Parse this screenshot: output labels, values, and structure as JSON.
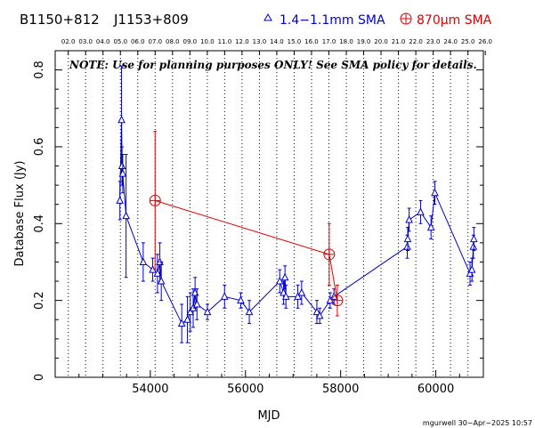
{
  "header": {
    "source_name": "B1150+812",
    "alt_name": "J1153+809",
    "legend_blue": "1.4−1.1mm SMA",
    "legend_red": "870μm SMA"
  },
  "note": "NOTE: Use for planning purposes ONLY! See SMA policy for details.",
  "footer_stamp": "mgurwell 30−Apr−2025 10:57",
  "colors": {
    "blue": "#0000cc",
    "red": "#dd0000",
    "axis": "#000000",
    "grid": "#000000"
  },
  "chart_data": {
    "type": "scatter",
    "xlabel": "MJD",
    "ylabel": "Database Flux (Jy)",
    "xlim": [
      52000,
      61000
    ],
    "ylim": [
      0,
      0.85
    ],
    "x_ticks": [
      54000,
      56000,
      58000,
      60000
    ],
    "x_tick_labels": [
      "54000",
      "56000",
      "58000",
      "60000"
    ],
    "y_ticks": [
      0,
      0.2,
      0.4,
      0.6,
      0.8
    ],
    "y_tick_labels": [
      "0",
      "0.2",
      "0.4",
      "0.6",
      "0.8"
    ],
    "top_axis_years": [
      {
        "label": "02.0",
        "mjd": 52275
      },
      {
        "label": "03.0",
        "mjd": 52640
      },
      {
        "label": "04.0",
        "mjd": 53005
      },
      {
        "label": "05.0",
        "mjd": 53371
      },
      {
        "label": "06.0",
        "mjd": 53736
      },
      {
        "label": "07.0",
        "mjd": 54101
      },
      {
        "label": "08.0",
        "mjd": 54466
      },
      {
        "label": "09.0",
        "mjd": 54832
      },
      {
        "label": "10.0",
        "mjd": 55197
      },
      {
        "label": "11.0",
        "mjd": 55562
      },
      {
        "label": "12.0",
        "mjd": 55927
      },
      {
        "label": "13.0",
        "mjd": 56293
      },
      {
        "label": "14.0",
        "mjd": 56658
      },
      {
        "label": "15.0",
        "mjd": 57023
      },
      {
        "label": "16.0",
        "mjd": 57388
      },
      {
        "label": "17.0",
        "mjd": 57754
      },
      {
        "label": "18.0",
        "mjd": 58119
      },
      {
        "label": "19.0",
        "mjd": 58484
      },
      {
        "label": "20.0",
        "mjd": 58849
      },
      {
        "label": "21.0",
        "mjd": 59215
      },
      {
        "label": "22.0",
        "mjd": 59580
      },
      {
        "label": "23.0",
        "mjd": 59945
      },
      {
        "label": "24.0",
        "mjd": 60310
      },
      {
        "label": "25.0",
        "mjd": 60676
      },
      {
        "label": "26.0",
        "mjd": 61041
      }
    ],
    "grid": "vertical dotted at year boundaries",
    "series": [
      {
        "name": "1.4−1.1mm SMA",
        "marker": "triangle",
        "points": [
          {
            "x": 53360,
            "y": 0.46,
            "err": 0.05
          },
          {
            "x": 53395,
            "y": 0.67,
            "err": 0.14
          },
          {
            "x": 53405,
            "y": 0.55,
            "err": 0.05
          },
          {
            "x": 53420,
            "y": 0.53,
            "err": 0.05
          },
          {
            "x": 53490,
            "y": 0.42,
            "err": 0.16
          },
          {
            "x": 53850,
            "y": 0.3,
            "err": 0.05
          },
          {
            "x": 54050,
            "y": 0.28,
            "err": 0.03
          },
          {
            "x": 54150,
            "y": 0.27,
            "err": 0.05
          },
          {
            "x": 54200,
            "y": 0.3,
            "err": 0.05
          },
          {
            "x": 54230,
            "y": 0.25,
            "err": 0.05
          },
          {
            "x": 54660,
            "y": 0.14,
            "err": 0.05
          },
          {
            "x": 54780,
            "y": 0.15,
            "err": 0.06
          },
          {
            "x": 54840,
            "y": 0.17,
            "err": 0.05
          },
          {
            "x": 54900,
            "y": 0.18,
            "err": 0.05
          },
          {
            "x": 54940,
            "y": 0.22,
            "err": 0.04
          },
          {
            "x": 54980,
            "y": 0.19,
            "err": 0.04
          },
          {
            "x": 55200,
            "y": 0.17,
            "err": 0.02
          },
          {
            "x": 55560,
            "y": 0.21,
            "err": 0.03
          },
          {
            "x": 55900,
            "y": 0.2,
            "err": 0.02
          },
          {
            "x": 56080,
            "y": 0.17,
            "err": 0.03
          },
          {
            "x": 56720,
            "y": 0.25,
            "err": 0.03
          },
          {
            "x": 56800,
            "y": 0.22,
            "err": 0.03
          },
          {
            "x": 56830,
            "y": 0.26,
            "err": 0.03
          },
          {
            "x": 56850,
            "y": 0.21,
            "err": 0.03
          },
          {
            "x": 57100,
            "y": 0.21,
            "err": 0.03
          },
          {
            "x": 57180,
            "y": 0.22,
            "err": 0.03
          },
          {
            "x": 57500,
            "y": 0.17,
            "err": 0.03
          },
          {
            "x": 57560,
            "y": 0.16,
            "err": 0.02
          },
          {
            "x": 57780,
            "y": 0.2,
            "err": 0.02
          },
          {
            "x": 57860,
            "y": 0.21,
            "err": 0.02
          },
          {
            "x": 59400,
            "y": 0.34,
            "err": 0.03
          },
          {
            "x": 59410,
            "y": 0.36,
            "err": 0.03
          },
          {
            "x": 59440,
            "y": 0.41,
            "err": 0.03
          },
          {
            "x": 59680,
            "y": 0.43,
            "err": 0.03
          },
          {
            "x": 59900,
            "y": 0.39,
            "err": 0.03
          },
          {
            "x": 59980,
            "y": 0.48,
            "err": 0.03
          },
          {
            "x": 60720,
            "y": 0.27,
            "err": 0.03
          },
          {
            "x": 60760,
            "y": 0.28,
            "err": 0.03
          },
          {
            "x": 60790,
            "y": 0.34,
            "err": 0.03
          },
          {
            "x": 60800,
            "y": 0.36,
            "err": 0.03
          }
        ]
      },
      {
        "name": "870μm SMA",
        "marker": "circle-plus",
        "points": [
          {
            "x": 54100,
            "y": 0.46,
            "err": 0.18
          },
          {
            "x": 57760,
            "y": 0.32,
            "err": 0.08
          },
          {
            "x": 57930,
            "y": 0.2,
            "err": 0.04
          }
        ]
      }
    ]
  }
}
